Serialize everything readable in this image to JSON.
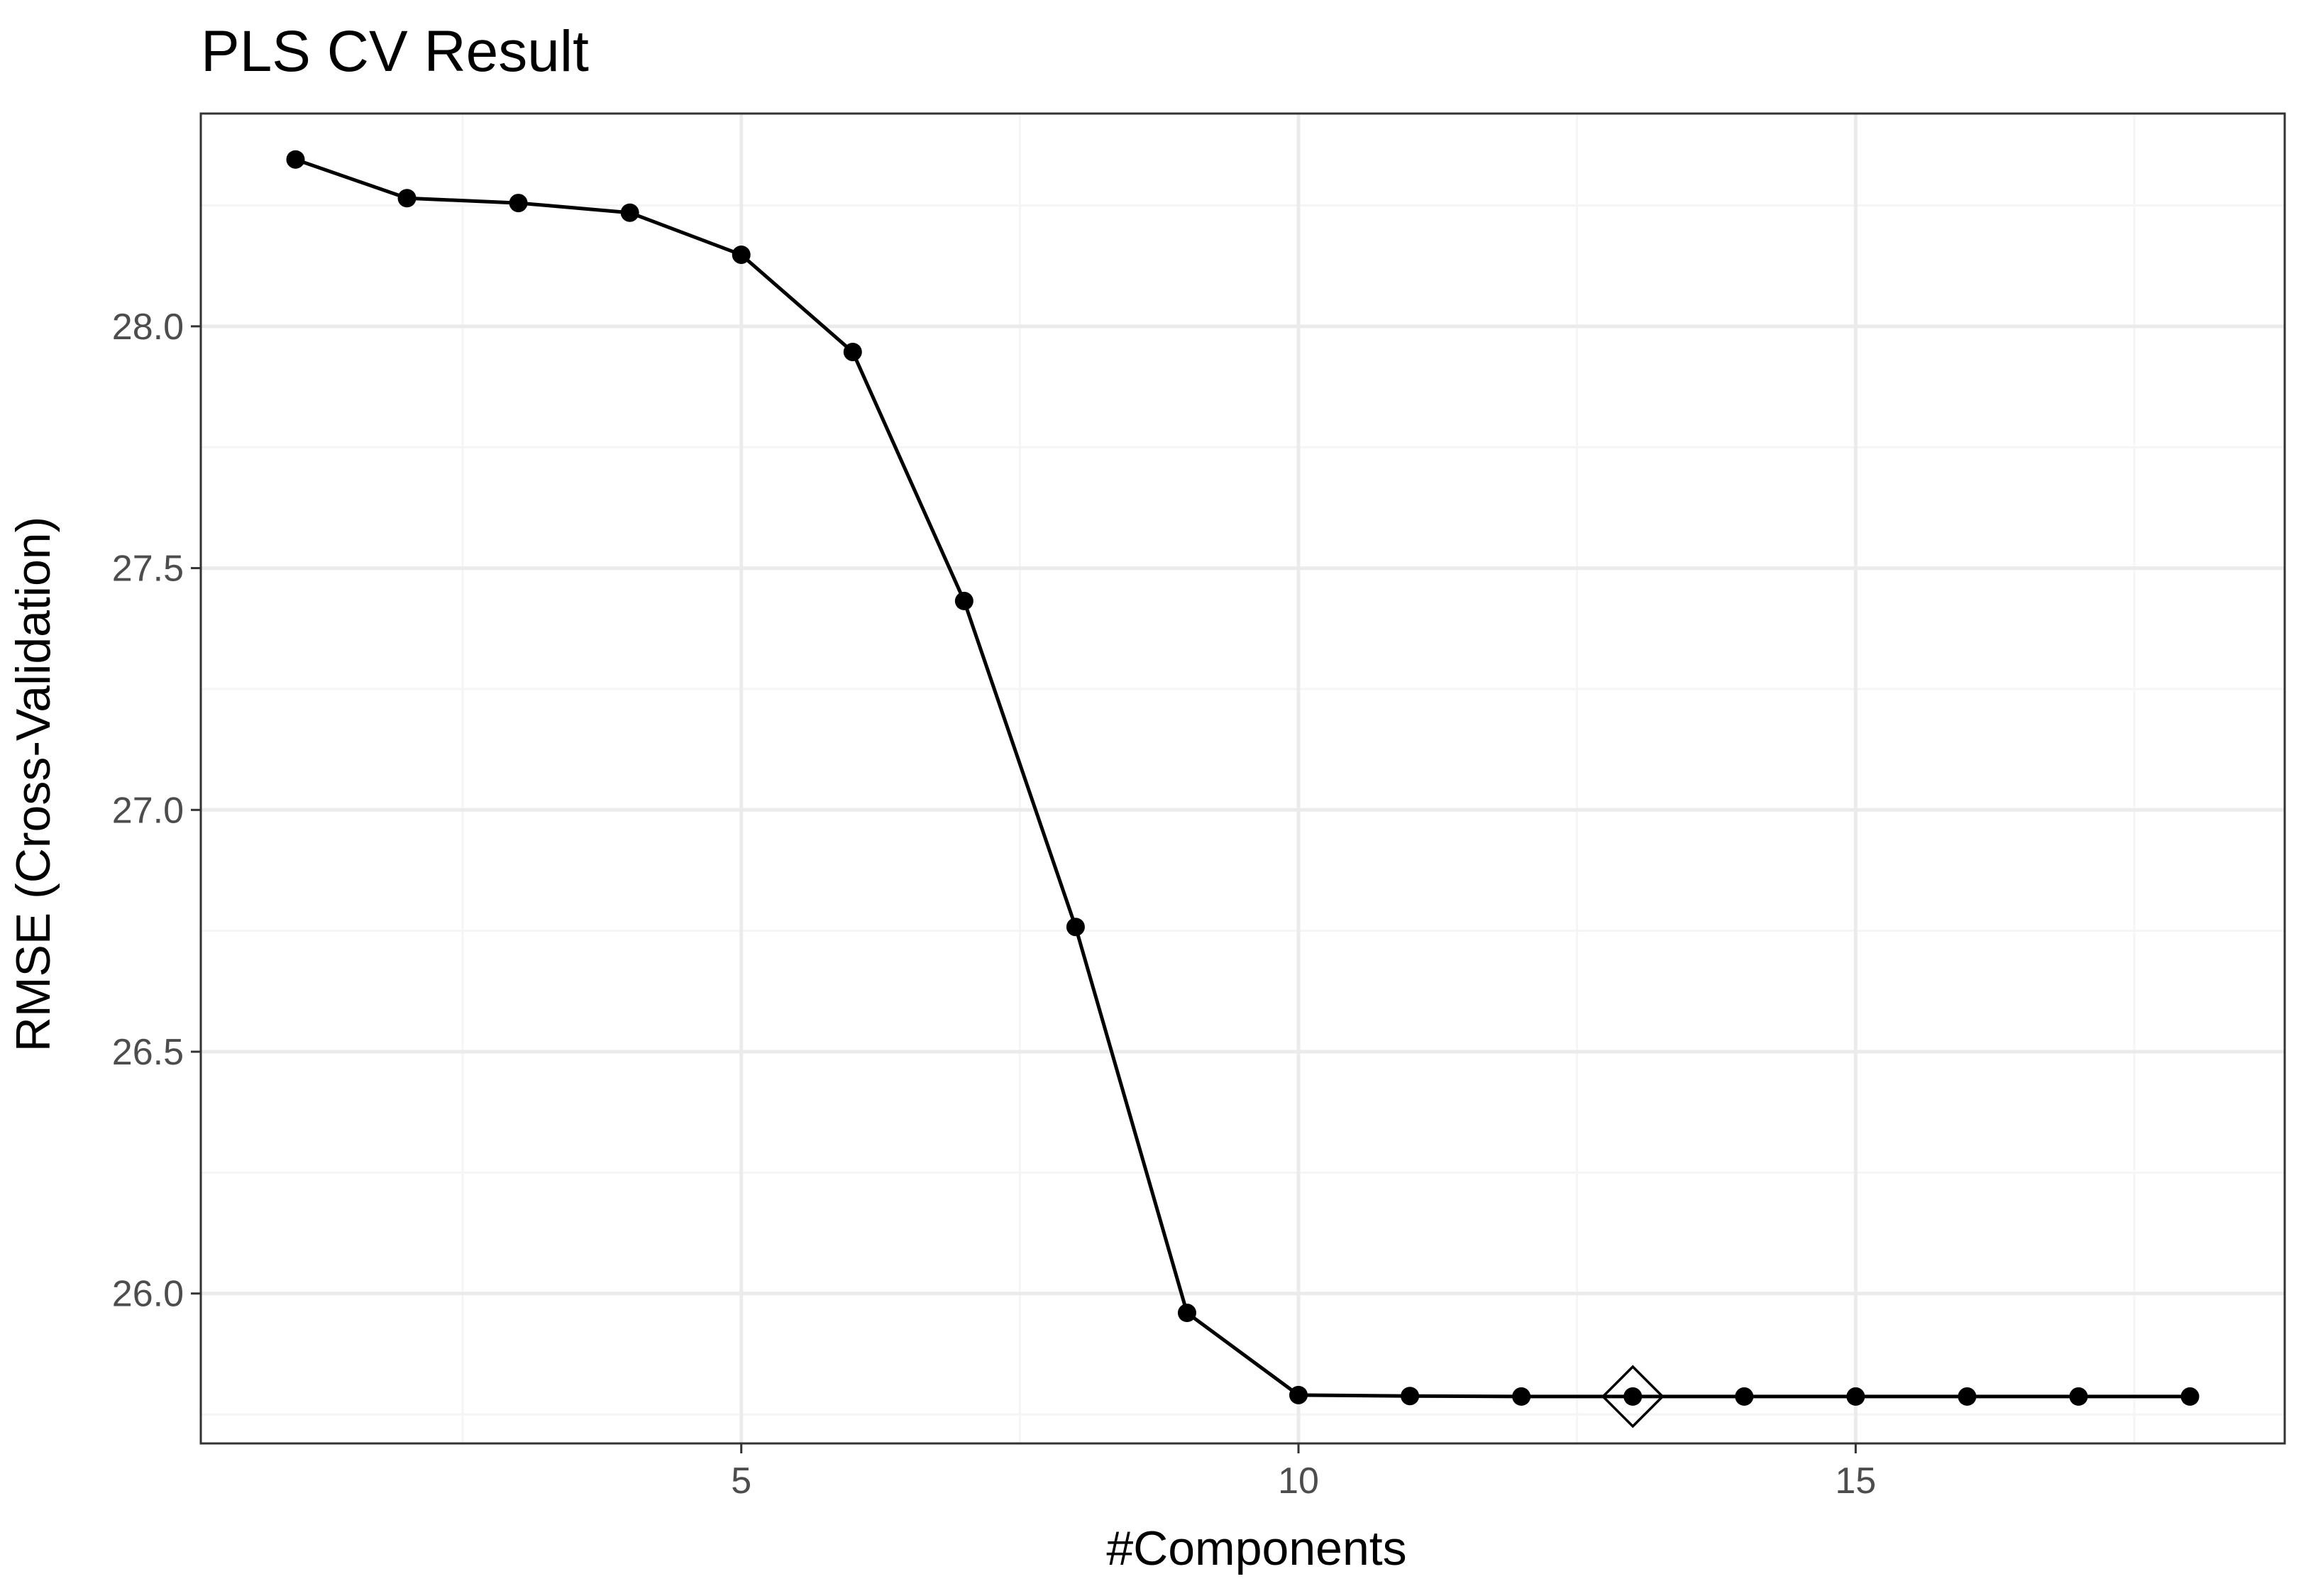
{
  "chart_data": {
    "type": "line",
    "title": "PLS CV Result",
    "xlabel": "#Components",
    "ylabel": "RMSE (Cross-Validation)",
    "x": [
      1,
      2,
      3,
      4,
      5,
      6,
      7,
      8,
      9,
      10,
      11,
      12,
      13,
      14,
      15,
      16,
      17,
      18
    ],
    "series": [
      {
        "values": [
          28.345,
          28.265,
          28.255,
          28.235,
          28.148,
          27.947,
          27.432,
          26.758,
          25.96,
          25.79,
          25.788,
          25.787,
          25.787,
          25.787,
          25.787,
          25.787,
          25.787,
          25.787
        ]
      }
    ],
    "highlight": {
      "x": 13,
      "y": 25.787,
      "marker": "diamond-open"
    },
    "xlim": [
      0.15,
      18.85
    ],
    "ylim": [
      25.69,
      28.44
    ],
    "x_ticks": [
      5,
      10,
      15
    ],
    "x_tick_labels": [
      "5",
      "10",
      "15"
    ],
    "x_minor_ticks": [
      2.5,
      7.5,
      12.5,
      17.5
    ],
    "y_ticks": [
      26.0,
      26.5,
      27.0,
      27.5,
      28.0
    ],
    "y_tick_labels": [
      "26.0",
      "26.5",
      "27.0",
      "27.5",
      "28.0"
    ],
    "y_minor_ticks": [
      25.75,
      26.25,
      26.75,
      27.25,
      27.75,
      28.25
    ],
    "grid": true,
    "legend": "none",
    "colors": {
      "line": "#000000",
      "point": "#000000",
      "grid_major": "#ebebeb",
      "grid_minor": "#f5f5f5",
      "panel_border": "#333333",
      "tick_label": "#4d4d4d",
      "background": "#ffffff"
    }
  }
}
